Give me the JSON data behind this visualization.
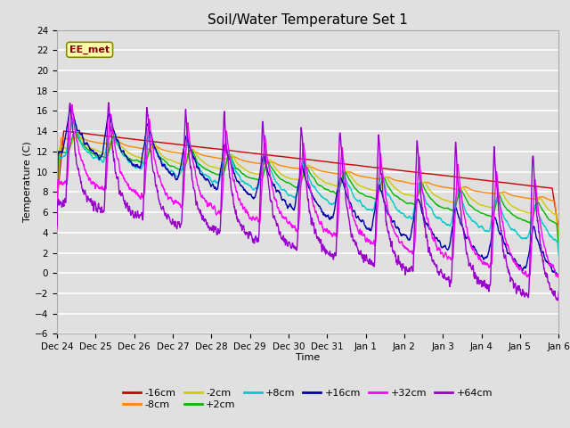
{
  "title": "Soil/Water Temperature Set 1",
  "xlabel": "Time",
  "ylabel": "Temperature (C)",
  "xlim": [
    0,
    13
  ],
  "ylim": [
    -6,
    24
  ],
  "yticks": [
    -6,
    -4,
    -2,
    0,
    2,
    4,
    6,
    8,
    10,
    12,
    14,
    16,
    18,
    20,
    22,
    24
  ],
  "xtick_labels": [
    "Dec 24",
    "Dec 25",
    "Dec 26",
    "Dec 27",
    "Dec 28",
    "Dec 29",
    "Dec 30",
    "Dec 31",
    "Jan 1",
    "Jan 2",
    "Jan 3",
    "Jan 4",
    "Jan 5",
    "Jan 6"
  ],
  "background_color": "#e0e0e0",
  "grid_color": "white",
  "series": {
    "m16cm": {
      "label": "-16cm",
      "color": "#cc0000"
    },
    "m8cm": {
      "label": "-8cm",
      "color": "#ff8800"
    },
    "m2cm": {
      "label": "-2cm",
      "color": "#cccc00"
    },
    "p2cm": {
      "label": "+2cm",
      "color": "#00bb00"
    },
    "p8cm": {
      "label": "+8cm",
      "color": "#00cccc"
    },
    "p16cm": {
      "label": "+16cm",
      "color": "#0000aa"
    },
    "p32cm": {
      "label": "+32cm",
      "color": "#ff00ff"
    },
    "p64cm": {
      "label": "+64cm",
      "color": "#9900cc"
    }
  },
  "watermark": "EE_met",
  "legend_order": [
    "-16cm",
    "-8cm",
    "-2cm",
    "+2cm",
    "+8cm",
    "+16cm",
    "+32cm",
    "+64cm"
  ]
}
